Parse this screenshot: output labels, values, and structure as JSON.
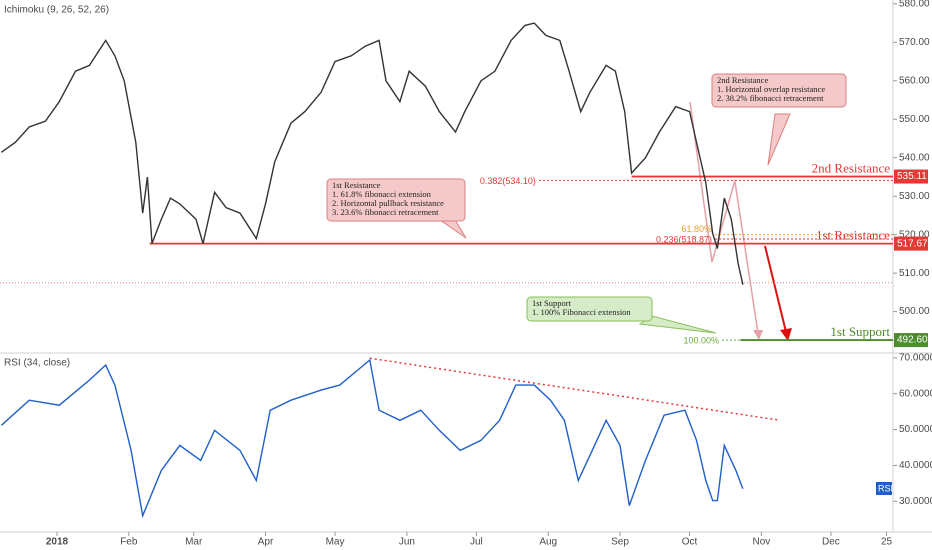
{
  "chart_data": [
    {
      "type": "line",
      "indicator": "Ichimoku (9, 26, 52, 26)",
      "color": "#333333",
      "x": [
        -24,
        -18,
        -12,
        -5,
        1,
        8,
        14,
        21,
        25,
        29,
        34,
        37,
        39,
        41,
        45,
        49,
        53,
        60,
        63,
        68,
        73,
        79,
        86,
        90,
        94,
        101,
        107,
        114,
        120,
        127,
        133,
        139,
        142,
        148,
        152,
        159,
        165,
        172,
        176,
        183,
        189,
        196,
        202,
        206,
        211,
        217,
        221,
        226,
        230,
        237,
        241,
        245,
        248,
        254,
        260,
        267,
        273,
        276,
        280,
        283,
        285,
        288,
        291,
        294,
        296
      ],
      "values": [
        541.4,
        544,
        548,
        549.5,
        554.6,
        562.5,
        564,
        570.5,
        566.5,
        560,
        544,
        525.6,
        535,
        517.7,
        524,
        529.5,
        528,
        524,
        517.7,
        531,
        527,
        525.6,
        519,
        528,
        539,
        549,
        552,
        557,
        565,
        566.5,
        569,
        570.5,
        560,
        554.6,
        562.5,
        558.6,
        552,
        546.7,
        552,
        560,
        562.5,
        570.5,
        574.4,
        575,
        571.8,
        570.5,
        562.5,
        552,
        557,
        564,
        562.5,
        552,
        536,
        540,
        546.7,
        553.3,
        552,
        544,
        533.5,
        520.3,
        516.4,
        529.5,
        524,
        512.4,
        507
      ],
      "xlim": [
        -24.6,
        360.8
      ],
      "ylim": [
        489.5,
        581
      ],
      "yticks": [
        {
          "value": 500,
          "label": "500.00"
        },
        {
          "value": 510,
          "label": "510.00"
        },
        {
          "value": 520,
          "label": "520.00"
        },
        {
          "value": 530,
          "label": "530.00"
        },
        {
          "value": 540,
          "label": "540.00"
        },
        {
          "value": 550,
          "label": "550.00"
        },
        {
          "value": 560,
          "label": "560.00"
        },
        {
          "value": 570,
          "label": "570.00"
        },
        {
          "value": 580,
          "label": "580.00"
        }
      ],
      "price_line": 507.5,
      "levels": [
        {
          "name": "2nd Resistance",
          "value": 535.11,
          "value_label": "535.11",
          "from": 248,
          "color": "#e53935"
        },
        {
          "name": "1st Resistance",
          "value": 517.67,
          "value_label": "517.67",
          "from": 40,
          "color": "#e53935"
        },
        {
          "name": "1st Support",
          "value": 492.6,
          "value_label": "492.60",
          "from": 295,
          "color": "#4c8c2b"
        }
      ],
      "fibs": [
        {
          "label": "0.382(534.10)",
          "value": 534.1,
          "from": 208,
          "color": "#e53935"
        },
        {
          "label": "0.236(518.87)",
          "value": 518.87,
          "from": 284,
          "color": "#e53935"
        },
        {
          "label": "61.80%",
          "value": 520.0,
          "from": 284,
          "color": "#e0a030"
        },
        {
          "label": "100.00%",
          "value": 492.6,
          "from": 287,
          "color": "#6aaa3a"
        }
      ],
      "callouts": [
        {
          "lines": [
            "1st Resistance",
            "1. 61.8% fibonacci extension",
            "2. Horizontal pullback resistance",
            "3. 23.6% fibonacci retracement"
          ]
        },
        {
          "lines": [
            "2nd Resistance",
            "1. Horizontal overlap resistance",
            "2. 38.2% fibonacci retracement"
          ]
        },
        {
          "lines": [
            "1st Support",
            "1. 100% Fibonacci extension"
          ]
        }
      ]
    },
    {
      "type": "line",
      "indicator": "RSI (34, close)",
      "badge": "RSI",
      "color": "#1f5fc9",
      "x": [
        -24,
        -12,
        1,
        14,
        21,
        25,
        32,
        37,
        45,
        53,
        62,
        68,
        79,
        86,
        92,
        101,
        114,
        122,
        135,
        139,
        148,
        157,
        165,
        174,
        183,
        191,
        198,
        206,
        213,
        219,
        225,
        230,
        237,
        243,
        247,
        254,
        262,
        271,
        276,
        280,
        283,
        285,
        288,
        293,
        296
      ],
      "values": [
        51.2,
        58.2,
        56.8,
        63.8,
        68,
        62.4,
        44.2,
        26,
        38.6,
        45.6,
        41.4,
        49.8,
        44.2,
        35.8,
        55.4,
        58.2,
        61,
        62.4,
        69.4,
        55.4,
        52.6,
        55.4,
        49.8,
        44.2,
        47,
        52.6,
        62.4,
        62.4,
        58.2,
        52.6,
        35.8,
        42.8,
        52.6,
        45.6,
        28.8,
        41.4,
        54,
        55.4,
        47,
        35.8,
        30.2,
        30.2,
        45.6,
        38.6,
        33.5
      ],
      "xlim": [
        -24.6,
        360.8
      ],
      "ylim": [
        22,
        70.8
      ],
      "yticks": [
        {
          "value": 30,
          "label": "30.0000"
        },
        {
          "value": 40,
          "label": "40.0000"
        },
        {
          "value": 50,
          "label": "50.0000"
        },
        {
          "value": 60,
          "label": "60.0000"
        },
        {
          "value": 70,
          "label": "70.0000"
        }
      ],
      "trendline": {
        "x": [
          135,
          312
        ],
        "y": [
          69.9,
          52.6
        ]
      },
      "xticks": [
        {
          "value": 0,
          "label": "2018"
        },
        {
          "value": 31,
          "label": "Feb"
        },
        {
          "value": 59,
          "label": "Mar"
        },
        {
          "value": 90,
          "label": "Apr"
        },
        {
          "value": 120,
          "label": "May"
        },
        {
          "value": 151,
          "label": "Jun"
        },
        {
          "value": 181,
          "label": "Jul"
        },
        {
          "value": 212,
          "label": "Aug"
        },
        {
          "value": 243,
          "label": "Sep"
        },
        {
          "value": 273,
          "label": "Oct"
        },
        {
          "value": 304,
          "label": "Nov"
        },
        {
          "value": 334,
          "label": "Dec"
        },
        {
          "value": 358,
          "label": "25"
        }
      ]
    }
  ]
}
